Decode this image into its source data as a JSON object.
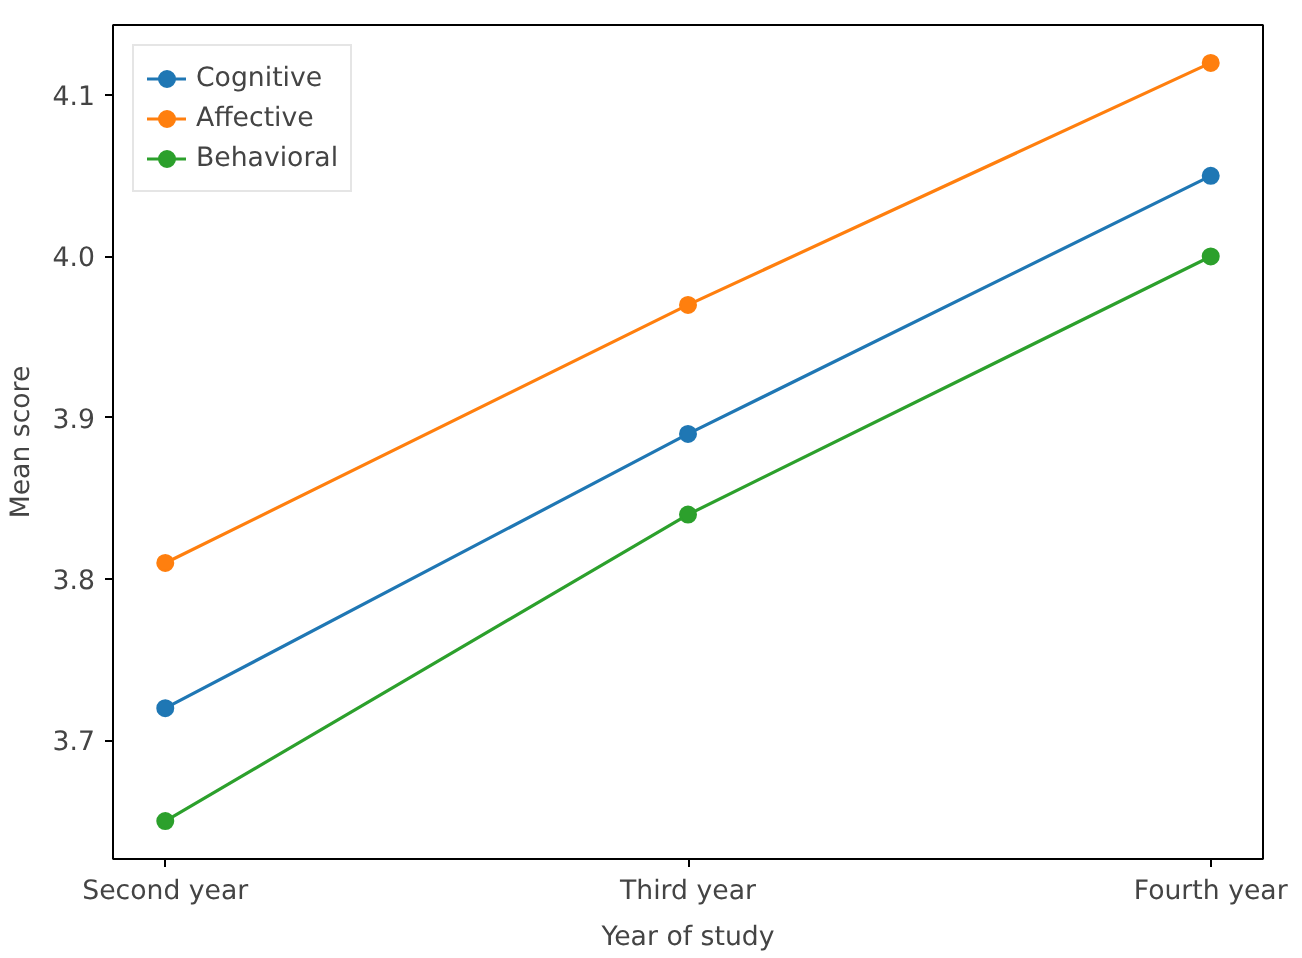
{
  "chart_data": {
    "type": "line",
    "xlabel": "Year of study",
    "ylabel": "Mean score",
    "categories": [
      "Second year",
      "Third year",
      "Fourth year"
    ],
    "series": [
      {
        "name": "Cognitive",
        "color": "#1f77b4",
        "values": [
          3.72,
          3.89,
          4.05
        ]
      },
      {
        "name": "Affective",
        "color": "#ff7f0e",
        "values": [
          3.81,
          3.97,
          4.12
        ]
      },
      {
        "name": "Behavioral",
        "color": "#2ca02c",
        "values": [
          3.65,
          3.84,
          4.0
        ]
      }
    ],
    "ylim": [
      3.6265,
      4.1435
    ],
    "yticks": [
      3.7,
      3.8,
      3.9,
      {
        "value": 4,
        "label": "4.0"
      },
      4.1
    ],
    "grid": false,
    "legend": "top left",
    "marker": "circle",
    "line_style": "solid"
  }
}
